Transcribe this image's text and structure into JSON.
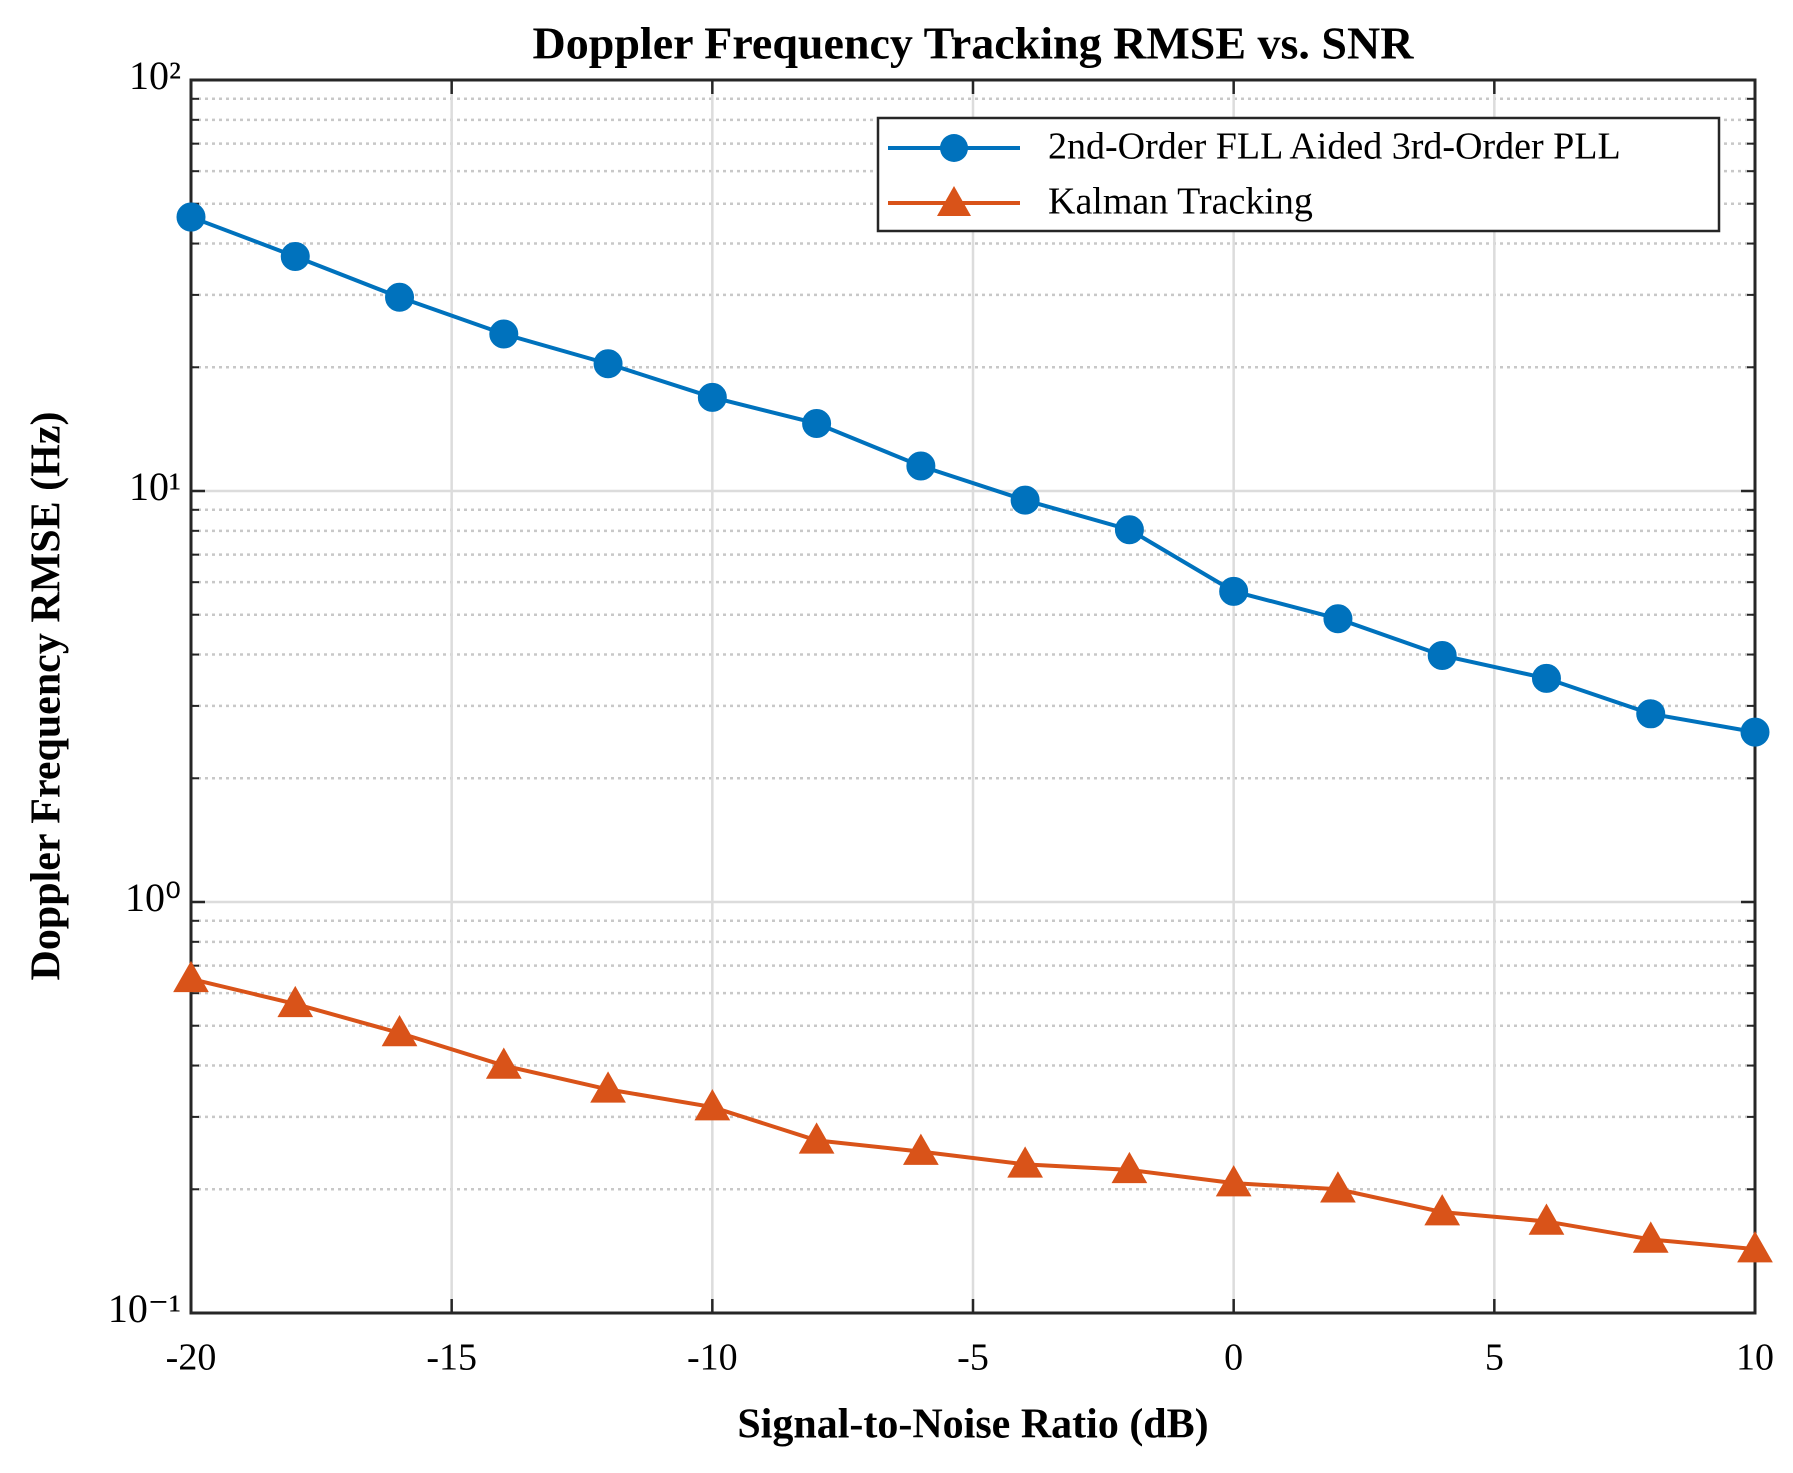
{
  "chart_data": {
    "type": "line",
    "title": "Doppler Frequency Tracking RMSE vs. SNR",
    "xlabel": "Signal-to-Noise Ratio (dB)",
    "ylabel": "Doppler Frequency RMSE (Hz)",
    "x": [
      -20,
      -18,
      -16,
      -14,
      -12,
      -10,
      -8,
      -6,
      -4,
      -2,
      0,
      2,
      4,
      6,
      8,
      10
    ],
    "series": [
      {
        "name": "2nd-Order FLL Aided 3rd-Order PLL",
        "color": "#0072bd",
        "marker": "circle",
        "values": [
          46.4,
          37.2,
          29.6,
          24.1,
          20.4,
          16.9,
          14.6,
          11.5,
          9.5,
          8.05,
          5.7,
          4.89,
          3.98,
          3.5,
          2.87,
          2.59
        ]
      },
      {
        "name": "Kalman Tracking",
        "color": "#d95319",
        "marker": "triangle",
        "values": [
          0.65,
          0.565,
          0.48,
          0.4,
          0.35,
          0.317,
          0.263,
          0.247,
          0.23,
          0.223,
          0.207,
          0.2,
          0.176,
          0.167,
          0.151,
          0.143
        ]
      }
    ],
    "xlim": [
      -20,
      10
    ],
    "xticks": [
      -20,
      -15,
      -10,
      -5,
      0,
      5,
      10
    ],
    "ylim": [
      0.1,
      100
    ],
    "ylog": true,
    "yticks": [
      {
        "value": 0.1,
        "label": "10⁻¹"
      },
      {
        "value": 1,
        "label": "10⁰"
      },
      {
        "value": 10,
        "label": "10¹"
      },
      {
        "value": 100,
        "label": "10²"
      }
    ],
    "yminorticks": [
      0.2,
      0.3,
      0.4,
      0.5,
      0.6,
      0.7,
      0.8,
      0.9,
      2,
      3,
      4,
      5,
      6,
      7,
      8,
      9,
      20,
      30,
      40,
      50,
      60,
      70,
      80,
      90
    ],
    "grid": true,
    "legend": "upper right"
  }
}
